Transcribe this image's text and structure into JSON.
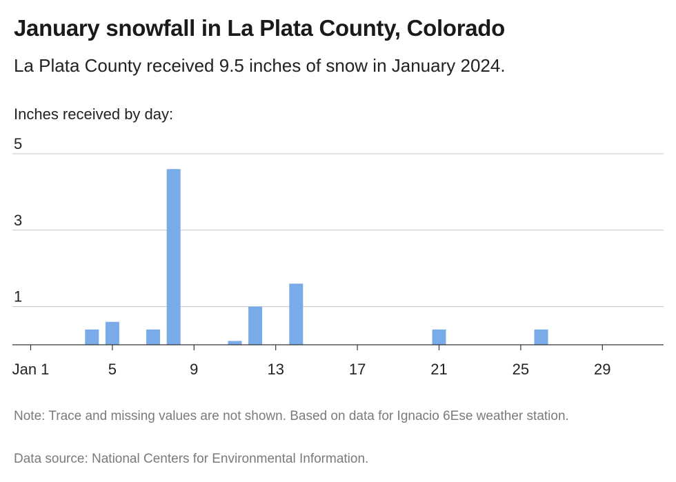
{
  "title": "January snowfall in La Plata County, Colorado",
  "subtitle": "La Plata County received 9.5 inches of snow in January 2024.",
  "note": "Note: Trace and missing values are not shown. Based on data for Ignacio 6Ese weather station.",
  "source": "Data source: National Centers for Environmental Information.",
  "colors": {
    "bar": "#7aabe9",
    "grid": "#c4c4c4",
    "axis": "#333333"
  },
  "chart_data": {
    "type": "bar",
    "ylabel": "Inches received by day:",
    "x": [
      4,
      5,
      7,
      8,
      11,
      12,
      14,
      21,
      26
    ],
    "values": [
      0.4,
      0.6,
      0.4,
      4.6,
      0.1,
      1.0,
      1.6,
      0.4,
      0.4
    ],
    "xlim": [
      1,
      31
    ],
    "ylim": [
      0,
      5
    ],
    "yticks": [
      1,
      3,
      5
    ],
    "xticks": [
      {
        "day": 1,
        "label": "Jan 1"
      },
      {
        "day": 5,
        "label": "5"
      },
      {
        "day": 9,
        "label": "9"
      },
      {
        "day": 13,
        "label": "13"
      },
      {
        "day": 17,
        "label": "17"
      },
      {
        "day": 21,
        "label": "21"
      },
      {
        "day": 25,
        "label": "25"
      },
      {
        "day": 29,
        "label": "29"
      }
    ],
    "grid": true
  }
}
